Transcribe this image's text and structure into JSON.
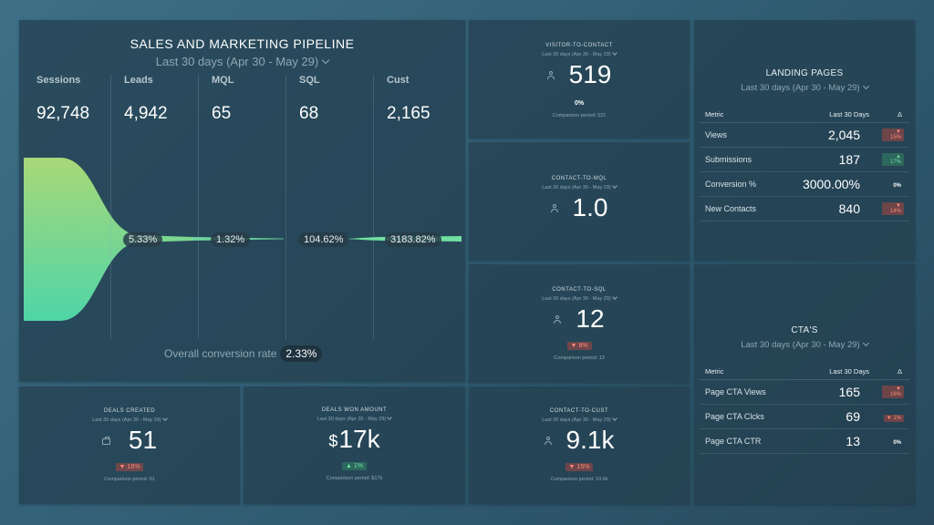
{
  "pipeline": {
    "title": "SALES AND MARKETING PIPELINE",
    "range": "Last 30 days (Apr 30 - May 29)",
    "stages": [
      {
        "label": "Sessions",
        "value": "92,748"
      },
      {
        "label": "Leads",
        "value": "4,942"
      },
      {
        "label": "MQL",
        "value": "65"
      },
      {
        "label": "SQL",
        "value": "68"
      },
      {
        "label": "Cust",
        "value": "2,165"
      }
    ],
    "rates": [
      "5.33%",
      "1.32%",
      "104.62%",
      "3183.82%"
    ],
    "overall_label": "Overall conversion rate",
    "overall_value": "2.33%",
    "funnel_colors": [
      "#9fd67a",
      "#4fd1a5"
    ]
  },
  "visitor_to_contact": {
    "title": "VISITOR-TO-CONTACT",
    "range": "Last 30 days (Apr 30 - May 29)",
    "value": "519",
    "change": "0%",
    "comparison": "Comparison period: 521"
  },
  "contact_to_mql": {
    "title": "CONTACT-TO-MQL",
    "range": "Last 30 days (Apr 30 - May 29)",
    "value": "1.0"
  },
  "contact_to_sql": {
    "title": "CONTACT-TO-SQL",
    "range": "Last 30 days (Apr 30 - May 29)",
    "value": "12",
    "change": "▼ 8%",
    "comparison": "Comparison period: 13"
  },
  "contact_to_cust": {
    "title": "CONTACT-TO-CUST",
    "range": "Last 30 days (Apr 30 - May 29)",
    "value": "9.1k",
    "change": "▼ 15%",
    "comparison": "Comparison period: 10.6k"
  },
  "deals_created": {
    "title": "DEALS CREATED",
    "range": "Last 30 days (Apr 30 - May 29)",
    "value": "51",
    "change": "▼ 16%",
    "comparison": "Comparison period: 61"
  },
  "deals_won": {
    "title": "DEALS WON AMOUNT",
    "range": "Last 30 days (Apr 30 - May 29)",
    "currency": "$",
    "value": "17k",
    "change": "▲ 1%",
    "comparison": "Comparison period: $17k"
  },
  "landing_pages": {
    "title": "LANDING PAGES",
    "range": "Last 30 days (Apr 30 - May 29)",
    "headers": [
      "Metric",
      "Last 30 Days",
      "Δ"
    ],
    "rows": [
      {
        "metric": "Views",
        "value": "2,045",
        "delta": "▼ 15%"
      },
      {
        "metric": "Submissions",
        "value": "187",
        "delta": "▲ 17%"
      },
      {
        "metric": "Conversion %",
        "value": "3000.00%",
        "delta": "0%"
      },
      {
        "metric": "New Contacts",
        "value": "840",
        "delta": "▼ 14%"
      }
    ]
  },
  "ctas": {
    "title": "CTA'S",
    "range": "Last 30 days (Apr 30 - May 29)",
    "headers": [
      "Metric",
      "Last 30 Days",
      "Δ"
    ],
    "rows": [
      {
        "metric": "Page CTA Views",
        "value": "165",
        "delta": "▼ 16%"
      },
      {
        "metric": "Page CTA Clcks",
        "value": "69",
        "delta": "▼ 1%"
      },
      {
        "metric": "Page CTA CTR",
        "value": "13",
        "delta": "0%"
      }
    ]
  }
}
